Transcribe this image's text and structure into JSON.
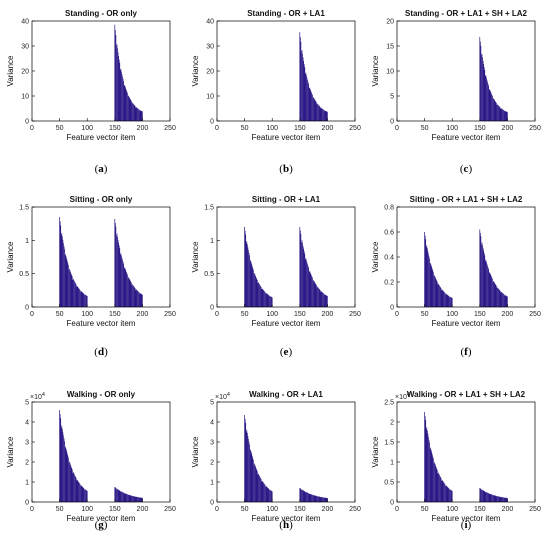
{
  "chart_data": [
    {
      "type": "bar",
      "label": "a",
      "title": "Standing - OR only",
      "xlabel": "Feature vector item",
      "ylabel": "Variance",
      "xlim": [
        0,
        250
      ],
      "ylim": [
        0,
        40
      ],
      "xticks": [
        0,
        50,
        100,
        150,
        200,
        250
      ],
      "yticks": [
        0,
        10,
        20,
        30,
        40
      ],
      "y_exponent": "",
      "segments": [
        {
          "x_start": 150,
          "x_end": 200,
          "peak": 38.5,
          "end": 2,
          "decay": 3
        }
      ]
    },
    {
      "type": "bar",
      "label": "b",
      "title": "Standing - OR + LA1",
      "xlabel": "Feature vector item",
      "ylabel": "Variance",
      "xlim": [
        0,
        250
      ],
      "ylim": [
        0,
        40
      ],
      "xticks": [
        0,
        50,
        100,
        150,
        200,
        250
      ],
      "yticks": [
        0,
        10,
        20,
        30,
        40
      ],
      "y_exponent": "",
      "segments": [
        {
          "x_start": 150,
          "x_end": 200,
          "peak": 35.5,
          "end": 2,
          "decay": 3
        }
      ]
    },
    {
      "type": "bar",
      "label": "c",
      "title": "Standing - OR + LA1 + SH + LA2",
      "xlabel": "Feature vector item",
      "ylabel": "Variance",
      "xlim": [
        0,
        250
      ],
      "ylim": [
        0,
        20
      ],
      "xticks": [
        0,
        50,
        100,
        150,
        200,
        250
      ],
      "yticks": [
        0,
        5,
        10,
        15,
        20
      ],
      "y_exponent": "",
      "segments": [
        {
          "x_start": 150,
          "x_end": 200,
          "peak": 16.8,
          "end": 1,
          "decay": 3
        }
      ]
    },
    {
      "type": "bar",
      "label": "d",
      "title": "Sitting - OR only",
      "xlabel": "Feature vector item",
      "ylabel": "Variance",
      "xlim": [
        0,
        250
      ],
      "ylim": [
        0,
        1.5
      ],
      "xticks": [
        0,
        50,
        100,
        150,
        200,
        250
      ],
      "yticks": [
        0,
        0.5,
        1,
        1.5
      ],
      "y_exponent": "",
      "segments": [
        {
          "x_start": 50,
          "x_end": 100,
          "peak": 1.35,
          "end": 0.07,
          "decay": 2.6
        },
        {
          "x_start": 150,
          "x_end": 200,
          "peak": 1.32,
          "end": 0.07,
          "decay": 2.4
        }
      ]
    },
    {
      "type": "bar",
      "label": "e",
      "title": "Sitting - OR + LA1",
      "xlabel": "Feature vector item",
      "ylabel": "Variance",
      "xlim": [
        0,
        250
      ],
      "ylim": [
        0,
        1.5
      ],
      "xticks": [
        0,
        50,
        100,
        150,
        200,
        250
      ],
      "yticks": [
        0,
        0.5,
        1,
        1.5
      ],
      "y_exponent": "",
      "segments": [
        {
          "x_start": 50,
          "x_end": 100,
          "peak": 1.2,
          "end": 0.06,
          "decay": 2.6
        },
        {
          "x_start": 150,
          "x_end": 200,
          "peak": 1.2,
          "end": 0.06,
          "decay": 2.4
        }
      ]
    },
    {
      "type": "bar",
      "label": "f",
      "title": "Sitting - OR + LA1 + SH + LA2",
      "xlabel": "Feature vector item",
      "ylabel": "Variance",
      "xlim": [
        0,
        250
      ],
      "ylim": [
        0,
        0.8
      ],
      "xticks": [
        0,
        50,
        100,
        150,
        200,
        250
      ],
      "yticks": [
        0,
        0.2,
        0.4,
        0.6,
        0.8
      ],
      "y_exponent": "",
      "segments": [
        {
          "x_start": 50,
          "x_end": 100,
          "peak": 0.6,
          "end": 0.03,
          "decay": 2.6
        },
        {
          "x_start": 150,
          "x_end": 200,
          "peak": 0.62,
          "end": 0.03,
          "decay": 2.4
        }
      ]
    },
    {
      "type": "bar",
      "label": "g",
      "title": "Walking - OR only",
      "xlabel": "Feature vector item",
      "ylabel": "Variance",
      "xlim": [
        0,
        250
      ],
      "ylim": [
        0,
        5
      ],
      "xticks": [
        0,
        50,
        100,
        150,
        200,
        250
      ],
      "yticks": [
        0,
        1,
        2,
        3,
        4,
        5
      ],
      "y_exponent": "10^4",
      "segments": [
        {
          "x_start": 50,
          "x_end": 100,
          "peak": 4.6,
          "end": 0.15,
          "decay": 2.4
        },
        {
          "x_start": 150,
          "x_end": 200,
          "peak": 0.75,
          "end": 0.1,
          "decay": 1.8
        }
      ]
    },
    {
      "type": "bar",
      "label": "h",
      "title": "Walking - OR + LA1",
      "xlabel": "Feature vector item",
      "ylabel": "Variance",
      "xlim": [
        0,
        250
      ],
      "ylim": [
        0,
        5
      ],
      "xticks": [
        0,
        50,
        100,
        150,
        200,
        250
      ],
      "yticks": [
        0,
        1,
        2,
        3,
        4,
        5
      ],
      "y_exponent": "10^4",
      "segments": [
        {
          "x_start": 50,
          "x_end": 100,
          "peak": 4.35,
          "end": 0.15,
          "decay": 2.4
        },
        {
          "x_start": 150,
          "x_end": 200,
          "peak": 0.7,
          "end": 0.1,
          "decay": 1.8
        }
      ]
    },
    {
      "type": "bar",
      "label": "i",
      "title": "Walking - OR + LA1 + SH + LA2",
      "xlabel": "Feature vector item",
      "ylabel": "Variance",
      "xlim": [
        0,
        250
      ],
      "ylim": [
        0,
        2.5
      ],
      "xticks": [
        0,
        50,
        100,
        150,
        200,
        250
      ],
      "yticks": [
        0,
        0.5,
        1,
        1.5,
        2,
        2.5
      ],
      "y_exponent": "10^4",
      "segments": [
        {
          "x_start": 50,
          "x_end": 100,
          "peak": 2.25,
          "end": 0.08,
          "decay": 2.4
        },
        {
          "x_start": 150,
          "x_end": 200,
          "peak": 0.35,
          "end": 0.05,
          "decay": 1.8
        }
      ]
    }
  ],
  "colors": {
    "bar": "#2e1a87",
    "axis": "#000000"
  }
}
